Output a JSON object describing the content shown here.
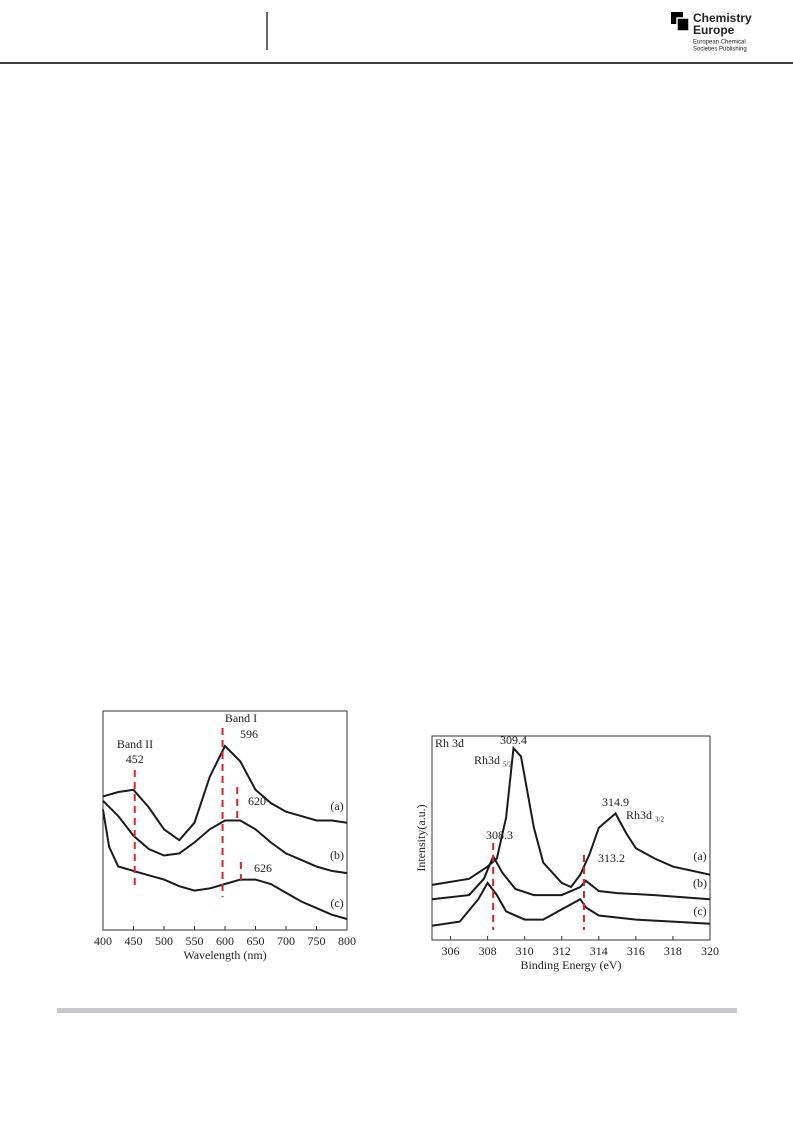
{
  "header": {
    "brand": [
      "Chemistry",
      "Europe"
    ],
    "publisher": [
      "European Chemical",
      "Societies Publishing"
    ]
  },
  "chart_data": [
    {
      "type": "line",
      "xlabel": "Wavelength (nm)",
      "xlim": [
        400,
        800
      ],
      "ylim": [
        0,
        1
      ],
      "xticks": [
        400,
        450,
        500,
        550,
        600,
        650,
        700,
        750,
        800
      ],
      "band_labels": [
        "Band II",
        "Band I"
      ],
      "markers": [
        452,
        596,
        620,
        626
      ],
      "color": "#1a1a1a",
      "marker_color": "#d62728",
      "series": [
        {
          "name": "(a)",
          "x": [
            400,
            425,
            450,
            475,
            500,
            525,
            550,
            575,
            600,
            625,
            650,
            675,
            700,
            725,
            750,
            775,
            800
          ],
          "values": [
            0.61,
            0.63,
            0.64,
            0.56,
            0.46,
            0.41,
            0.49,
            0.7,
            0.84,
            0.77,
            0.64,
            0.58,
            0.54,
            0.52,
            0.5,
            0.5,
            0.49
          ]
        },
        {
          "name": "(b)",
          "x": [
            400,
            425,
            450,
            475,
            500,
            525,
            550,
            575,
            600,
            625,
            650,
            675,
            700,
            725,
            750,
            775,
            800
          ],
          "values": [
            0.59,
            0.52,
            0.43,
            0.37,
            0.34,
            0.35,
            0.4,
            0.46,
            0.5,
            0.5,
            0.46,
            0.4,
            0.35,
            0.32,
            0.29,
            0.27,
            0.26
          ]
        },
        {
          "name": "(c)",
          "x": [
            400,
            410,
            425,
            450,
            475,
            500,
            525,
            550,
            575,
            600,
            625,
            650,
            675,
            700,
            725,
            750,
            775,
            800
          ],
          "values": [
            0.55,
            0.38,
            0.29,
            0.27,
            0.25,
            0.23,
            0.2,
            0.18,
            0.19,
            0.21,
            0.23,
            0.23,
            0.21,
            0.17,
            0.13,
            0.1,
            0.07,
            0.05
          ]
        }
      ]
    },
    {
      "type": "line",
      "xlabel": "Binding Energy (eV)",
      "ylabel": "Intensity(a.u.)",
      "panel_label": "Rh 3d",
      "xlim": [
        305,
        320
      ],
      "ylim": [
        0,
        1
      ],
      "xticks": [
        306,
        308,
        310,
        312,
        314,
        316,
        318,
        320
      ],
      "peaks": [
        309.4,
        314.9
      ],
      "peak_labels": [
        {
          "text": "Rh3d",
          "sub": "5/2"
        },
        {
          "text": "Rh3d",
          "sub": "3/2"
        }
      ],
      "markers": [
        308.3,
        313.2
      ],
      "color": "#1a1a1a",
      "marker_color": "#d62728",
      "series": [
        {
          "name": "(a)",
          "x": [
            305,
            307,
            308,
            308.5,
            309,
            309.4,
            309.8,
            310.5,
            311,
            312,
            312.5,
            313,
            313.5,
            314,
            314.9,
            315.5,
            316,
            317,
            318,
            319,
            320
          ],
          "values": [
            0.27,
            0.3,
            0.36,
            0.4,
            0.6,
            0.94,
            0.9,
            0.55,
            0.38,
            0.28,
            0.26,
            0.32,
            0.42,
            0.55,
            0.62,
            0.52,
            0.45,
            0.4,
            0.36,
            0.34,
            0.32
          ]
        },
        {
          "name": "(b)",
          "x": [
            305,
            307,
            307.8,
            308.3,
            308.8,
            309.5,
            310.5,
            312,
            313,
            313.3,
            314,
            315,
            317,
            320
          ],
          "values": [
            0.2,
            0.22,
            0.3,
            0.41,
            0.33,
            0.25,
            0.22,
            0.22,
            0.26,
            0.29,
            0.24,
            0.23,
            0.22,
            0.2
          ]
        },
        {
          "name": "(c)",
          "x": [
            305,
            306.5,
            307.5,
            308,
            308.5,
            309,
            310,
            311,
            312,
            313,
            313.3,
            314,
            316,
            318,
            320
          ],
          "values": [
            0.07,
            0.09,
            0.2,
            0.28,
            0.22,
            0.14,
            0.1,
            0.1,
            0.15,
            0.2,
            0.16,
            0.12,
            0.1,
            0.09,
            0.08
          ]
        }
      ]
    }
  ]
}
